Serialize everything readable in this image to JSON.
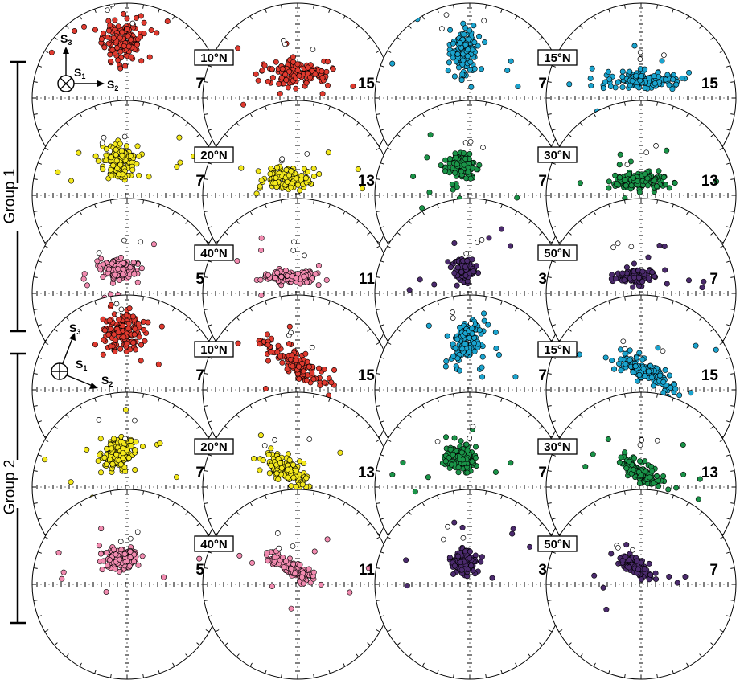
{
  "figure": {
    "groups": [
      {
        "id": "group1",
        "label": "Group 1",
        "legend": {
          "type": "perpendicular-S1"
        }
      },
      {
        "id": "group2",
        "label": "Group 2",
        "legend": {
          "type": "tilted-S1"
        }
      }
    ],
    "axis_labels": {
      "s1": "S",
      "s1_sub": "1",
      "s2": "S",
      "s2_sub": "2",
      "s3": "S",
      "s3_sub": "3"
    },
    "colors": {
      "5N": "#e03a2f",
      "10N": "#e03a2f",
      "15N": "#1aa4cf",
      "20N": "#f3e81c",
      "30N": "#1a9448",
      "40N": "#f28bb0",
      "50N": "#4b2a6d",
      "open": "#ffffff",
      "outline": "#000000"
    }
  },
  "panels": [
    {
      "group": 1,
      "row": 0,
      "col": 0,
      "latitude_label": "",
      "count": "7",
      "color_key": "5N"
    },
    {
      "group": 1,
      "row": 0,
      "col": 1,
      "latitude_label": "10°N",
      "count": "15",
      "color_key": "10N"
    },
    {
      "group": 1,
      "row": 0,
      "col": 2,
      "latitude_label": "",
      "count": "7",
      "color_key": "15N"
    },
    {
      "group": 1,
      "row": 0,
      "col": 3,
      "latitude_label": "15°N",
      "count": "15",
      "color_key": "15N"
    },
    {
      "group": 1,
      "row": 1,
      "col": 0,
      "latitude_label": "",
      "count": "7",
      "color_key": "20N"
    },
    {
      "group": 1,
      "row": 1,
      "col": 1,
      "latitude_label": "20°N",
      "count": "13",
      "color_key": "20N"
    },
    {
      "group": 1,
      "row": 1,
      "col": 2,
      "latitude_label": "",
      "count": "7",
      "color_key": "30N"
    },
    {
      "group": 1,
      "row": 1,
      "col": 3,
      "latitude_label": "30°N",
      "count": "13",
      "color_key": "30N"
    },
    {
      "group": 1,
      "row": 2,
      "col": 0,
      "latitude_label": "",
      "count": "5",
      "color_key": "40N"
    },
    {
      "group": 1,
      "row": 2,
      "col": 1,
      "latitude_label": "40°N",
      "count": "11",
      "color_key": "40N"
    },
    {
      "group": 1,
      "row": 2,
      "col": 2,
      "latitude_label": "",
      "count": "3",
      "color_key": "50N"
    },
    {
      "group": 1,
      "row": 2,
      "col": 3,
      "latitude_label": "50°N",
      "count": "7",
      "color_key": "50N"
    },
    {
      "group": 2,
      "row": 3,
      "col": 0,
      "latitude_label": "",
      "count": "7",
      "color_key": "5N"
    },
    {
      "group": 2,
      "row": 3,
      "col": 1,
      "latitude_label": "10°N",
      "count": "15",
      "color_key": "10N"
    },
    {
      "group": 2,
      "row": 3,
      "col": 2,
      "latitude_label": "",
      "count": "7",
      "color_key": "15N"
    },
    {
      "group": 2,
      "row": 3,
      "col": 3,
      "latitude_label": "15°N",
      "count": "15",
      "color_key": "15N"
    },
    {
      "group": 2,
      "row": 4,
      "col": 0,
      "latitude_label": "",
      "count": "7",
      "color_key": "20N"
    },
    {
      "group": 2,
      "row": 4,
      "col": 1,
      "latitude_label": "20°N",
      "count": "13",
      "color_key": "20N"
    },
    {
      "group": 2,
      "row": 4,
      "col": 2,
      "latitude_label": "",
      "count": "7",
      "color_key": "30N"
    },
    {
      "group": 2,
      "row": 4,
      "col": 3,
      "latitude_label": "30°N",
      "count": "13",
      "color_key": "30N"
    },
    {
      "group": 2,
      "row": 5,
      "col": 0,
      "latitude_label": "",
      "count": "5",
      "color_key": "40N"
    },
    {
      "group": 2,
      "row": 5,
      "col": 1,
      "latitude_label": "40°N",
      "count": "11",
      "color_key": "40N"
    },
    {
      "group": 2,
      "row": 5,
      "col": 2,
      "latitude_label": "",
      "count": "3",
      "color_key": "50N"
    },
    {
      "group": 2,
      "row": 5,
      "col": 3,
      "latitude_label": "50°N",
      "count": "7",
      "color_key": "50N"
    }
  ]
}
